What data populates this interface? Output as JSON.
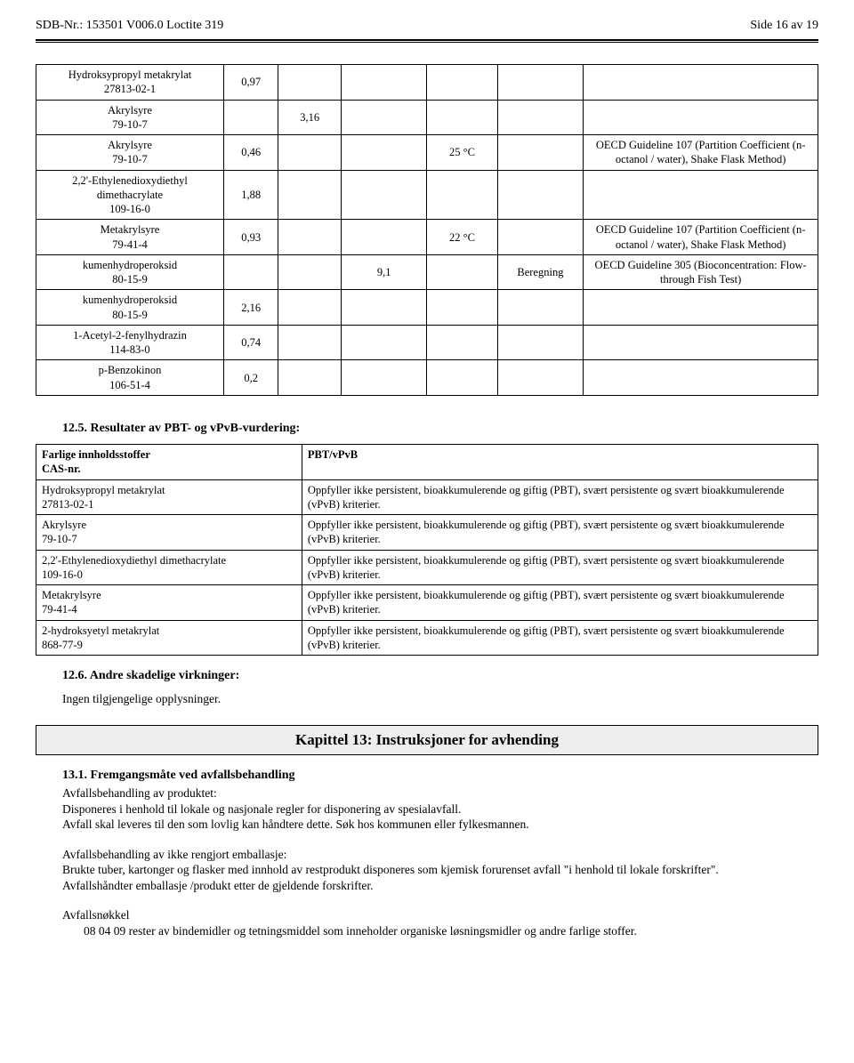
{
  "header": {
    "left": "SDB-Nr.: 153501   V006.0   Loctite 319",
    "right": "Side 16 av 19"
  },
  "table1": {
    "rows": [
      {
        "c1a": "Hydroksypropyl metakrylat",
        "c1b": "27813-02-1",
        "c2": "0,97",
        "c3": "",
        "c4": "",
        "c5": "",
        "c6": "",
        "c7": ""
      },
      {
        "c1a": "Akrylsyre",
        "c1b": "79-10-7",
        "c2": "",
        "c3": "3,16",
        "c4": "",
        "c5": "",
        "c6": "",
        "c7": ""
      },
      {
        "c1a": "Akrylsyre",
        "c1b": "79-10-7",
        "c2": "0,46",
        "c3": "",
        "c4": "",
        "c5": "25 °C",
        "c6": "",
        "c7": "OECD Guideline 107 (Partition Coefficient (n-octanol / water), Shake Flask Method)"
      },
      {
        "c1a": "2,2'-Ethylenedioxydiethyl dimethacrylate",
        "c1b": "109-16-0",
        "c2": "1,88",
        "c3": "",
        "c4": "",
        "c5": "",
        "c6": "",
        "c7": ""
      },
      {
        "c1a": "Metakrylsyre",
        "c1b": "79-41-4",
        "c2": "0,93",
        "c3": "",
        "c4": "",
        "c5": "22 °C",
        "c6": "",
        "c7": "OECD Guideline 107 (Partition Coefficient (n-octanol / water), Shake Flask Method)"
      },
      {
        "c1a": "kumenhydroperoksid",
        "c1b": "80-15-9",
        "c2": "",
        "c3": "",
        "c4": "9,1",
        "c5": "",
        "c6": "Beregning",
        "c7": "OECD Guideline 305 (Bioconcentration: Flow-through Fish Test)"
      },
      {
        "c1a": "kumenhydroperoksid",
        "c1b": "80-15-9",
        "c2": "2,16",
        "c3": "",
        "c4": "",
        "c5": "",
        "c6": "",
        "c7": ""
      },
      {
        "c1a": "1-Acetyl-2-fenylhydrazin",
        "c1b": "114-83-0",
        "c2": "0,74",
        "c3": "",
        "c4": "",
        "c5": "",
        "c6": "",
        "c7": ""
      },
      {
        "c1a": "p-Benzokinon",
        "c1b": "106-51-4",
        "c2": "0,2",
        "c3": "",
        "c4": "",
        "c5": "",
        "c6": "",
        "c7": ""
      }
    ]
  },
  "sec125": {
    "title": "12.5. Resultater av PBT- og vPvB-vurdering:",
    "th1a": "Farlige innholdsstoffer",
    "th1b": "CAS-nr.",
    "th2": "PBT/vPvB",
    "rows": [
      {
        "a1": "Hydroksypropyl metakrylat",
        "a2": "27813-02-1",
        "b": "Oppfyller ikke persistent, bioakkumulerende og giftig (PBT), svært persistente og svært bioakkumulerende (vPvB) kriterier."
      },
      {
        "a1": "Akrylsyre",
        "a2": "79-10-7",
        "b": "Oppfyller ikke persistent, bioakkumulerende og giftig (PBT), svært persistente og svært bioakkumulerende (vPvB) kriterier."
      },
      {
        "a1": "2,2'-Ethylenedioxydiethyl dimethacrylate",
        "a2": "109-16-0",
        "b": "Oppfyller ikke persistent, bioakkumulerende og giftig (PBT), svært persistente og svært bioakkumulerende (vPvB) kriterier."
      },
      {
        "a1": "Metakrylsyre",
        "a2": "79-41-4",
        "b": "Oppfyller ikke persistent, bioakkumulerende og giftig (PBT), svært persistente og svært bioakkumulerende (vPvB) kriterier."
      },
      {
        "a1": "2-hydroksyetyl metakrylat",
        "a2": "868-77-9",
        "b": "Oppfyller ikke persistent, bioakkumulerende og giftig (PBT), svært persistente og svært bioakkumulerende (vPvB) kriterier."
      }
    ]
  },
  "sec126": {
    "title": "12.6. Andre skadelige virkninger:",
    "text": "Ingen tilgjengelige opplysninger."
  },
  "chapter13": {
    "title": "Kapittel 13: Instruksjoner for avhending",
    "s131_title": "13.1. Fremgangsmåte ved avfallsbehandling",
    "p1_l1": "Avfallsbehandling av produktet:",
    "p1_l2": "Disponeres i henhold til lokale og nasjonale regler for disponering av spesialavfall.",
    "p1_l3": "Avfall skal leveres til den som lovlig kan håndtere dette. Søk hos kommunen eller fylkesmannen.",
    "p2_l1": "Avfallsbehandling av ikke rengjort emballasje:",
    "p2_l2": "Brukte tuber, kartonger og flasker med innhold av restprodukt disponeres som kjemisk forurenset avfall \"i henhold til lokale forskrifter\".",
    "p2_l3": "Avfallshåndter emballasje /produkt etter de gjeldende forskrifter.",
    "p3_l1": "Avfallsnøkkel",
    "p3_l2": "08 04 09 rester av bindemidler og tetningsmiddel som inneholder organiske løsningsmidler og andre farlige stoffer."
  }
}
